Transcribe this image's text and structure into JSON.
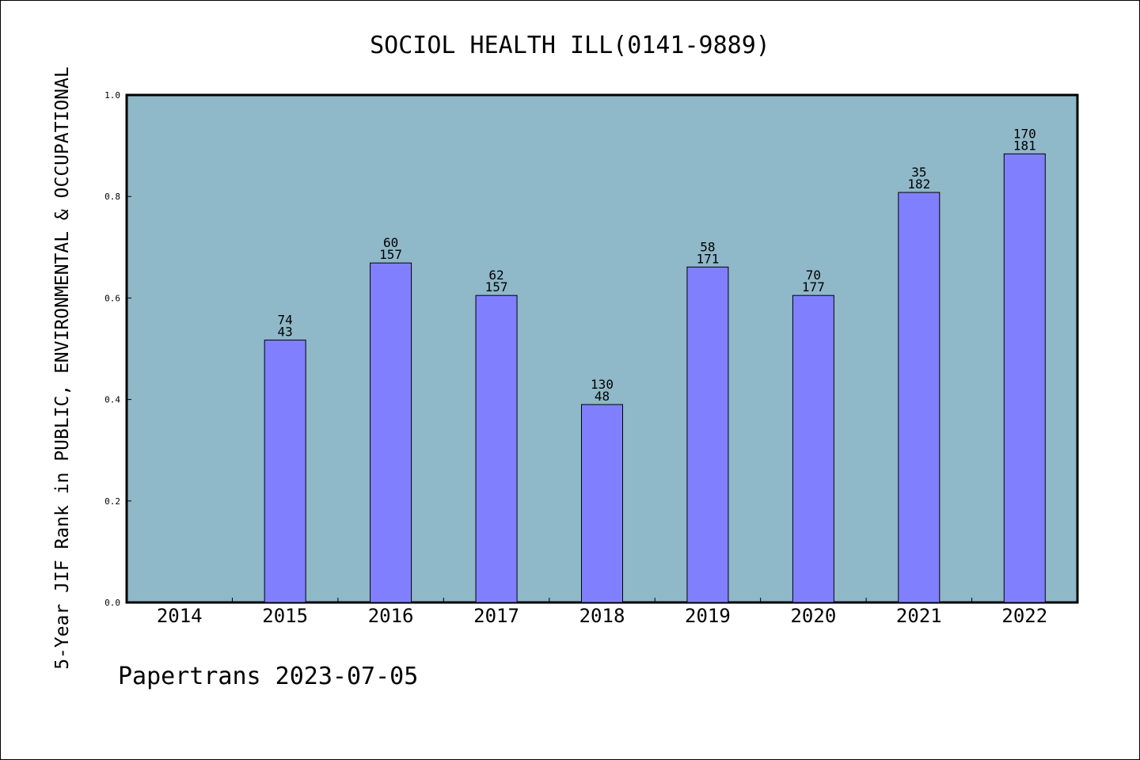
{
  "chart_data": {
    "type": "bar",
    "title": "SOCIOL HEALTH ILL(0141-9889)",
    "xlabel": "",
    "ylabel": "5-Year JIF Rank in PUBLIC, ENVIRONMENTAL & OCCUPATIONAL",
    "ylim": [
      0,
      1.0
    ],
    "yticks": [
      "0.0",
      "0.2",
      "0.4",
      "0.6",
      "0.8",
      "1.0"
    ],
    "grid": false,
    "categories": [
      "2014",
      "2015",
      "2016",
      "2017",
      "2018",
      "2019",
      "2020",
      "2021",
      "2022"
    ],
    "values": [
      null,
      0.517,
      0.669,
      0.605,
      0.39,
      0.661,
      0.605,
      0.808,
      0.884
    ],
    "annotations": [
      null,
      [
        "74",
        "43"
      ],
      [
        "60",
        "157"
      ],
      [
        "62",
        "157"
      ],
      [
        "130",
        "48"
      ],
      [
        "58",
        "171"
      ],
      [
        "70",
        "177"
      ],
      [
        "35",
        "182"
      ],
      [
        "170",
        "181"
      ]
    ],
    "colors": {
      "bar": "#8080ff",
      "plot_bg": "#8fb8c8",
      "axis": "#000000"
    }
  },
  "footer": {
    "text": "Papertrans 2023-07-05"
  }
}
